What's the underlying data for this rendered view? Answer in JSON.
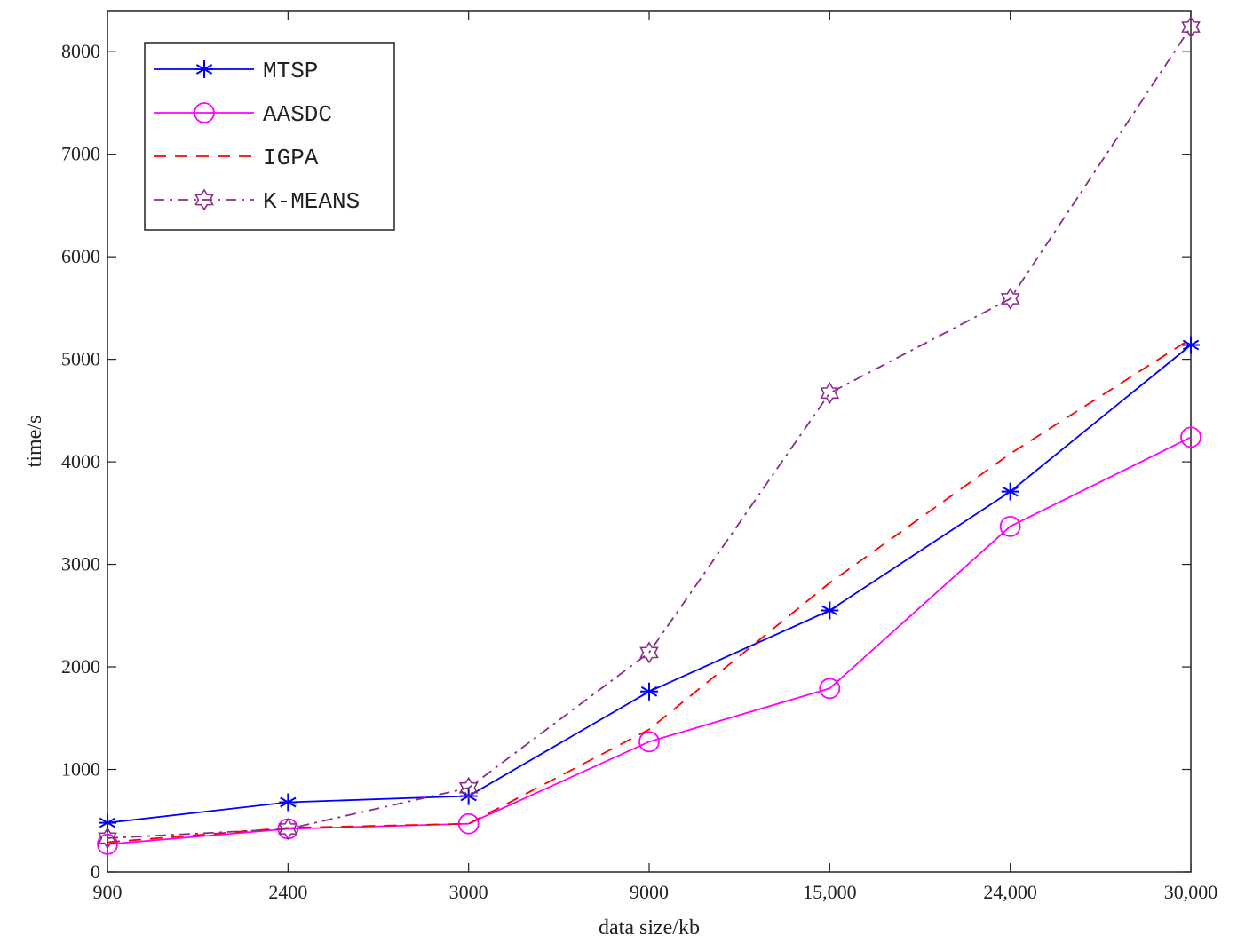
{
  "chart_data": {
    "type": "line",
    "title": "",
    "xlabel": "data size/kb",
    "ylabel": "time/s",
    "categories": [
      "900",
      "2400",
      "3000",
      "9000",
      "15,000",
      "24,000",
      "30,000"
    ],
    "ylim": [
      0,
      8400
    ],
    "yticks": [
      0,
      1000,
      2000,
      3000,
      4000,
      5000,
      6000,
      7000,
      8000
    ],
    "legend_position": "top-left",
    "grid": false,
    "series": [
      {
        "name": "MTSP",
        "color": "#0000ff",
        "dash": "solid",
        "marker": "asterisk",
        "values": [
          480,
          680,
          740,
          1760,
          2550,
          3710,
          5140
        ]
      },
      {
        "name": "AASDC",
        "color": "#ff00ff",
        "dash": "solid",
        "marker": "circle",
        "values": [
          270,
          420,
          470,
          1270,
          1790,
          3370,
          4240
        ]
      },
      {
        "name": "IGPA",
        "color": "#ff0000",
        "dash": "dashed",
        "marker": "none",
        "values": [
          290,
          430,
          470,
          1390,
          2820,
          4080,
          5200
        ]
      },
      {
        "name": "K-MEANS",
        "color": "#8b2b8b",
        "dash": "dashdot",
        "marker": "hexagram",
        "values": [
          330,
          420,
          820,
          2140,
          4670,
          5590,
          8240
        ]
      }
    ]
  }
}
